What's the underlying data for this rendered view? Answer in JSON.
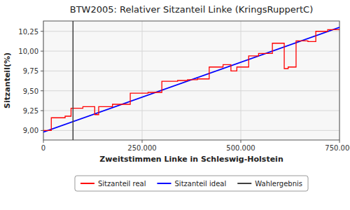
{
  "chart_data": {
    "type": "line",
    "title": "BTW2005: Relativer Sitzanteil Linke (KringsRuppertC)",
    "x_label": "Zweitstimmen Linke in Schleswig-Holstein",
    "y_label": "Sitzanteil(%)",
    "xlim": [
      0,
      750000
    ],
    "ylim": [
      8.88,
      10.38
    ],
    "xticks": [
      0,
      {
        "value": 250000,
        "label": "250.000"
      },
      {
        "value": 500000,
        "label": "500.000"
      },
      {
        "value": 750000,
        "label": "750.000"
      }
    ],
    "yticks": [
      {
        "value": 9.0,
        "label": "9,00"
      },
      {
        "value": 9.25,
        "label": "9,25"
      },
      {
        "value": 9.5,
        "label": "9,50"
      },
      {
        "value": 9.75,
        "label": "9,75"
      },
      {
        "value": 10.0,
        "label": "10,00"
      },
      {
        "value": 10.25,
        "label": "10,25"
      }
    ],
    "grid": true,
    "legend": "bottom",
    "series": [
      {
        "name": "Sitzanteil real",
        "color": "#ff0000",
        "x": [
          0,
          20000,
          20000,
          55000,
          55000,
          70000,
          70000,
          100000,
          100000,
          130000,
          130000,
          140000,
          140000,
          175000,
          175000,
          220000,
          220000,
          265000,
          265000,
          300000,
          300000,
          340000,
          340000,
          365000,
          365000,
          390000,
          390000,
          420000,
          420000,
          455000,
          455000,
          475000,
          475000,
          490000,
          490000,
          520000,
          520000,
          545000,
          545000,
          580000,
          580000,
          610000,
          610000,
          620000,
          620000,
          640000,
          640000,
          670000,
          670000,
          690000,
          690000,
          720000,
          720000,
          750000
        ],
        "values": [
          9.0,
          9.0,
          9.16,
          9.16,
          9.18,
          9.18,
          9.28,
          9.28,
          9.3,
          9.3,
          9.2,
          9.2,
          9.3,
          9.3,
          9.33,
          9.33,
          9.47,
          9.47,
          9.48,
          9.48,
          9.62,
          9.62,
          9.63,
          9.63,
          9.64,
          9.64,
          9.65,
          9.65,
          9.8,
          9.8,
          9.83,
          9.83,
          9.75,
          9.75,
          9.8,
          9.8,
          9.94,
          9.94,
          9.97,
          9.97,
          10.1,
          10.1,
          9.78,
          9.78,
          9.8,
          9.8,
          10.13,
          10.13,
          10.12,
          10.12,
          10.25,
          10.25,
          10.27,
          10.27
        ]
      },
      {
        "name": "Sitzanteil ideal",
        "color": "#0000ff",
        "x": [
          0,
          750000
        ],
        "values": [
          8.98,
          10.3
        ]
      },
      {
        "name": "Wahlergebnis",
        "color": "#404040",
        "type": "vline",
        "x": [
          75000
        ]
      }
    ]
  }
}
